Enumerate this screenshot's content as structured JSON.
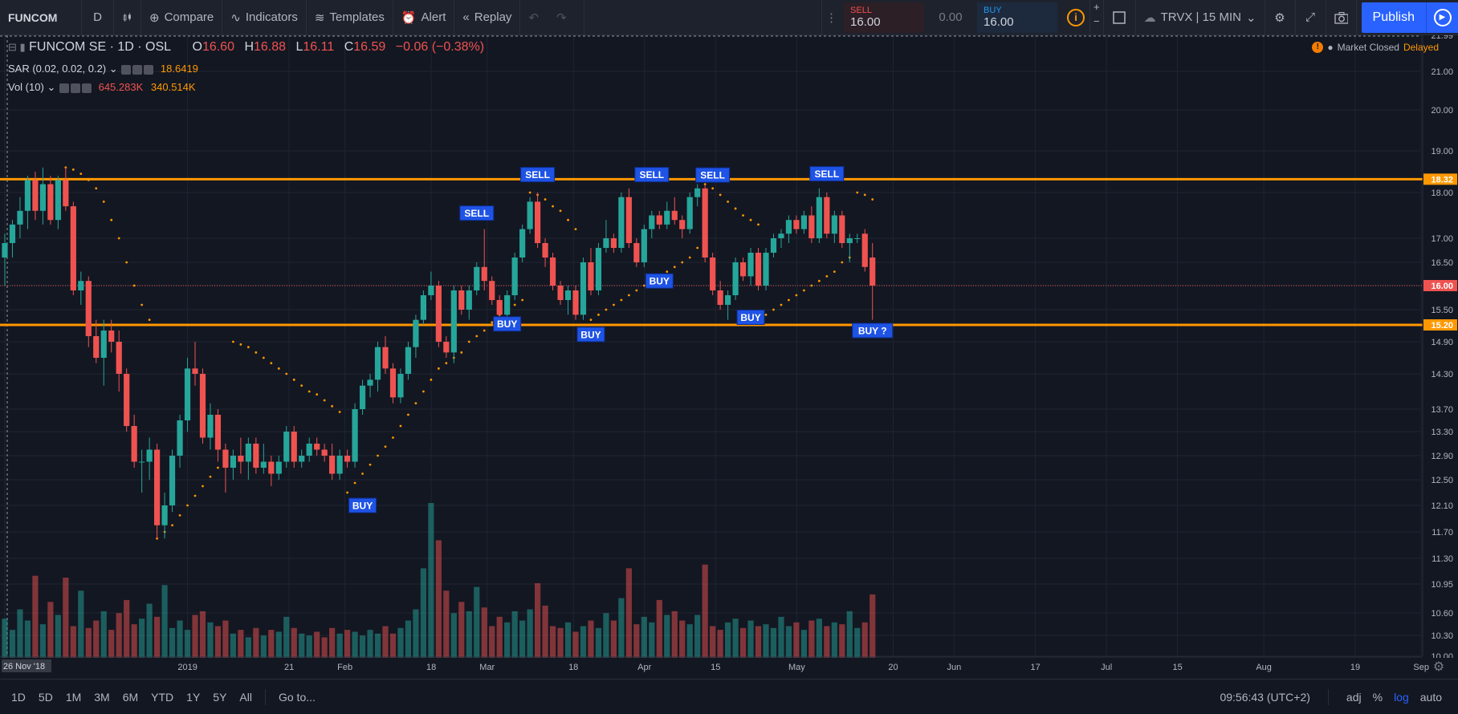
{
  "toolbar": {
    "symbol": "FUNCOM",
    "interval": "D",
    "compare": "Compare",
    "indicators": "Indicators",
    "templates": "Templates",
    "alert": "Alert",
    "replay": "Replay",
    "sell_label": "SELL",
    "sell_price": "16.00",
    "spread": "0.00",
    "buy_label": "BUY",
    "buy_price": "16.00",
    "layout_name": "TRVX | 15 MIN",
    "publish": "Publish"
  },
  "legend": {
    "name": "FUNCOM SE · 1D · OSL",
    "o_label": "O",
    "o": "16.60",
    "h_label": "H",
    "h": "16.88",
    "l_label": "L",
    "l": "16.11",
    "c_label": "C",
    "c": "16.59",
    "change": "−0.06 (−0.38%)",
    "sar_label": "SAR (0.02, 0.02, 0.2)",
    "sar_value": "18.6419",
    "vol_label": "Vol (10)",
    "vol_value": "645.283K",
    "vol_ma": "340.514K"
  },
  "status": {
    "market": "Market Closed",
    "delayed": "Delayed"
  },
  "bottom": {
    "ranges": [
      "1D",
      "5D",
      "1M",
      "3M",
      "6M",
      "YTD",
      "1Y",
      "5Y",
      "All"
    ],
    "goto": "Go to...",
    "time": "09:56:43 (UTC+2)",
    "adj": "adj",
    "percent": "%",
    "log": "log",
    "auto": "auto"
  },
  "chart_data": {
    "type": "candlestick",
    "y_ticks": [
      21.99,
      21.0,
      20.0,
      19.0,
      18.0,
      17.0,
      16.5,
      16.0,
      15.5,
      15.2,
      14.9,
      14.3,
      13.7,
      13.3,
      12.9,
      12.5,
      12.1,
      11.7,
      11.3,
      10.95,
      10.6,
      10.3,
      10.0
    ],
    "y_labels": [
      "21.99",
      "21.00",
      "20.00",
      "19.00",
      "18.00",
      "17.00",
      "16.50",
      "16.00",
      "15.50",
      "15.20",
      "14.90",
      "14.30",
      "13.70",
      "13.30",
      "12.90",
      "12.50",
      "12.10",
      "11.70",
      "11.30",
      "10.95",
      "10.60",
      "10.30",
      "10.00"
    ],
    "x_ticks": [
      {
        "label": "26 Nov '18",
        "day": 0
      },
      {
        "label": "2019",
        "day": 36
      },
      {
        "label": "21",
        "day": 56
      },
      {
        "label": "Feb",
        "day": 67
      },
      {
        "label": "18",
        "day": 84
      },
      {
        "label": "Mar",
        "day": 95
      },
      {
        "label": "18",
        "day": 112
      },
      {
        "label": "Apr",
        "day": 126
      },
      {
        "label": "15",
        "day": 140
      },
      {
        "label": "May",
        "day": 156
      },
      {
        "label": "20",
        "day": 175
      },
      {
        "label": "Jun",
        "day": 187
      },
      {
        "label": "17",
        "day": 203
      },
      {
        "label": "Jul",
        "day": 217
      },
      {
        "label": "15",
        "day": 231
      },
      {
        "label": "Aug",
        "day": 248
      },
      {
        "label": "19",
        "day": 266
      },
      {
        "label": "Sep",
        "day": 279
      }
    ],
    "horizontal_lines": [
      {
        "value": 18.32,
        "label": "18.32",
        "color": "#ff9800"
      },
      {
        "value": 15.2,
        "label": "15.20",
        "color": "#ff9800"
      }
    ],
    "last_price": {
      "value": 16.0,
      "label": "16.00",
      "color": "#ef5350"
    },
    "candles": [
      [
        16.6,
        17.1,
        16.0,
        16.9
      ],
      [
        16.9,
        17.4,
        16.6,
        17.3
      ],
      [
        17.3,
        17.9,
        17.0,
        17.6
      ],
      [
        17.6,
        18.4,
        17.2,
        18.3
      ],
      [
        18.3,
        18.5,
        17.4,
        17.6
      ],
      [
        17.6,
        18.6,
        17.3,
        18.2
      ],
      [
        18.2,
        18.4,
        17.3,
        17.4
      ],
      [
        17.4,
        18.4,
        17.2,
        18.3
      ],
      [
        18.3,
        18.6,
        17.6,
        17.7
      ],
      [
        17.7,
        17.8,
        15.8,
        15.9
      ],
      [
        15.9,
        16.3,
        15.6,
        16.1
      ],
      [
        16.1,
        16.2,
        14.8,
        15.0
      ],
      [
        15.0,
        15.3,
        14.5,
        14.6
      ],
      [
        14.6,
        15.3,
        14.1,
        15.1
      ],
      [
        15.1,
        15.3,
        14.7,
        14.9
      ],
      [
        14.9,
        15.1,
        14.0,
        14.3
      ],
      [
        14.3,
        14.4,
        13.3,
        13.4
      ],
      [
        13.4,
        13.6,
        12.7,
        12.8
      ],
      [
        12.8,
        13.0,
        12.3,
        12.8
      ],
      [
        12.8,
        13.2,
        12.5,
        13.0
      ],
      [
        13.0,
        13.1,
        11.6,
        11.8
      ],
      [
        11.8,
        12.3,
        11.6,
        12.1
      ],
      [
        12.1,
        13.0,
        12.0,
        12.9
      ],
      [
        12.9,
        13.6,
        12.7,
        13.5
      ],
      [
        13.5,
        14.6,
        13.3,
        14.4
      ],
      [
        14.4,
        14.9,
        14.1,
        14.3
      ],
      [
        14.3,
        14.4,
        13.1,
        13.2
      ],
      [
        13.2,
        13.8,
        13.0,
        13.6
      ],
      [
        13.6,
        13.7,
        12.8,
        13.0
      ],
      [
        13.0,
        13.1,
        12.3,
        12.7
      ],
      [
        12.7,
        13.0,
        12.5,
        12.9
      ],
      [
        12.9,
        13.2,
        12.6,
        12.8
      ],
      [
        12.8,
        13.2,
        12.5,
        13.1
      ],
      [
        13.1,
        13.2,
        12.6,
        12.7
      ],
      [
        12.7,
        13.1,
        12.6,
        12.8
      ],
      [
        12.8,
        12.9,
        12.4,
        12.6
      ],
      [
        12.6,
        12.9,
        12.5,
        12.8
      ],
      [
        12.8,
        13.4,
        12.7,
        13.3
      ],
      [
        13.3,
        13.4,
        12.7,
        12.8
      ],
      [
        12.8,
        13.0,
        12.7,
        12.9
      ],
      [
        12.9,
        13.2,
        12.8,
        13.1
      ],
      [
        13.1,
        13.2,
        12.9,
        13.0
      ],
      [
        13.0,
        13.1,
        12.8,
        12.9
      ],
      [
        12.9,
        13.1,
        12.5,
        12.6
      ],
      [
        12.6,
        13.0,
        12.5,
        12.9
      ],
      [
        12.9,
        13.0,
        12.7,
        12.8
      ],
      [
        12.8,
        13.8,
        12.7,
        13.7
      ],
      [
        13.7,
        14.2,
        13.6,
        14.1
      ],
      [
        14.1,
        14.3,
        13.9,
        14.2
      ],
      [
        14.2,
        14.9,
        14.0,
        14.8
      ],
      [
        14.8,
        15.0,
        14.3,
        14.4
      ],
      [
        14.4,
        14.5,
        13.8,
        13.9
      ],
      [
        13.9,
        14.4,
        13.8,
        14.3
      ],
      [
        14.3,
        14.9,
        14.2,
        14.8
      ],
      [
        14.8,
        15.4,
        14.6,
        15.3
      ],
      [
        15.3,
        15.9,
        15.2,
        15.8
      ],
      [
        15.8,
        16.3,
        15.7,
        16.0
      ],
      [
        16.0,
        16.1,
        14.8,
        14.9
      ],
      [
        14.9,
        15.0,
        14.6,
        14.7
      ],
      [
        14.7,
        16.0,
        14.5,
        15.9
      ],
      [
        15.9,
        16.0,
        15.4,
        15.5
      ],
      [
        15.5,
        16.0,
        15.3,
        15.9
      ],
      [
        15.9,
        16.5,
        15.8,
        16.4
      ],
      [
        16.4,
        17.2,
        15.9,
        16.1
      ],
      [
        16.1,
        16.2,
        15.6,
        15.7
      ],
      [
        15.7,
        15.8,
        15.2,
        15.4
      ],
      [
        15.4,
        15.9,
        15.3,
        15.8
      ],
      [
        15.8,
        16.7,
        15.7,
        16.6
      ],
      [
        16.6,
        17.3,
        16.5,
        17.2
      ],
      [
        17.2,
        17.9,
        17.1,
        17.8
      ],
      [
        17.8,
        18.0,
        16.8,
        16.9
      ],
      [
        16.9,
        17.0,
        16.4,
        16.6
      ],
      [
        16.6,
        16.7,
        15.9,
        16.0
      ],
      [
        16.0,
        16.1,
        15.6,
        15.7
      ],
      [
        15.7,
        16.0,
        15.4,
        15.9
      ],
      [
        15.9,
        16.0,
        15.3,
        15.4
      ],
      [
        15.4,
        16.6,
        15.3,
        16.5
      ],
      [
        16.5,
        16.8,
        15.8,
        15.9
      ],
      [
        15.9,
        16.9,
        15.8,
        16.8
      ],
      [
        16.8,
        17.4,
        16.7,
        17.0
      ],
      [
        17.0,
        17.1,
        16.7,
        16.8
      ],
      [
        16.8,
        18.0,
        16.7,
        17.9
      ],
      [
        17.9,
        18.1,
        16.8,
        16.9
      ],
      [
        16.9,
        17.0,
        16.4,
        16.5
      ],
      [
        16.5,
        17.3,
        16.4,
        17.2
      ],
      [
        17.2,
        17.6,
        17.0,
        17.5
      ],
      [
        17.5,
        17.6,
        17.2,
        17.3
      ],
      [
        17.3,
        17.8,
        17.2,
        17.6
      ],
      [
        17.6,
        17.9,
        17.3,
        17.4
      ],
      [
        17.4,
        17.5,
        17.0,
        17.2
      ],
      [
        17.2,
        18.0,
        17.1,
        17.9
      ],
      [
        17.9,
        18.2,
        17.7,
        18.1
      ],
      [
        18.1,
        18.2,
        16.5,
        16.6
      ],
      [
        16.6,
        16.7,
        15.8,
        15.9
      ],
      [
        15.9,
        16.1,
        15.5,
        15.6
      ],
      [
        15.6,
        15.9,
        15.3,
        15.8
      ],
      [
        15.8,
        16.6,
        15.7,
        16.5
      ],
      [
        16.5,
        16.6,
        16.1,
        16.2
      ],
      [
        16.2,
        16.8,
        16.0,
        16.7
      ],
      [
        16.7,
        16.8,
        15.9,
        16.0
      ],
      [
        16.0,
        16.8,
        15.9,
        16.7
      ],
      [
        16.7,
        17.1,
        16.6,
        17.0
      ],
      [
        17.0,
        17.2,
        16.8,
        17.1
      ],
      [
        17.1,
        17.5,
        16.9,
        17.4
      ],
      [
        17.4,
        17.5,
        17.1,
        17.2
      ],
      [
        17.2,
        17.6,
        17.1,
        17.5
      ],
      [
        17.5,
        17.7,
        16.9,
        17.0
      ],
      [
        17.0,
        18.1,
        16.9,
        17.9
      ],
      [
        17.9,
        18.0,
        17.0,
        17.1
      ],
      [
        17.1,
        17.6,
        16.9,
        17.5
      ],
      [
        17.5,
        17.6,
        16.8,
        16.9
      ],
      [
        16.9,
        17.1,
        16.5,
        17.0
      ],
      [
        17.0,
        17.1,
        16.9,
        17.0
      ],
      [
        17.1,
        17.2,
        16.3,
        16.4
      ],
      [
        16.6,
        16.9,
        15.3,
        16.0
      ]
    ],
    "sar": [
      null,
      null,
      null,
      null,
      null,
      null,
      null,
      null,
      18.6,
      18.55,
      18.45,
      18.3,
      18.1,
      17.8,
      17.4,
      17.0,
      16.5,
      16.0,
      15.6,
      15.3,
      11.6,
      11.7,
      11.8,
      11.95,
      12.1,
      12.25,
      12.4,
      12.55,
      12.7,
      12.85,
      14.9,
      14.85,
      14.8,
      14.7,
      14.6,
      14.5,
      14.4,
      14.3,
      14.2,
      14.1,
      14.0,
      13.95,
      13.85,
      13.75,
      13.65,
      12.3,
      12.45,
      12.6,
      12.75,
      12.9,
      13.05,
      13.2,
      13.4,
      13.6,
      13.8,
      14.0,
      14.2,
      14.4,
      14.5,
      14.6,
      14.7,
      14.9,
      15.0,
      15.1,
      15.25,
      15.4,
      15.5,
      15.6,
      15.7,
      18.0,
      17.95,
      17.85,
      17.7,
      17.6,
      17.4,
      17.2,
      15.2,
      15.3,
      15.4,
      15.5,
      15.6,
      15.7,
      15.8,
      15.9,
      16.0,
      16.1,
      16.2,
      16.3,
      16.4,
      16.5,
      16.6,
      16.8,
      18.2,
      18.1,
      17.95,
      17.8,
      17.65,
      17.5,
      17.4,
      17.3,
      15.4,
      15.5,
      15.6,
      15.7,
      15.8,
      15.9,
      16.0,
      16.1,
      16.2,
      16.3,
      16.5,
      16.6,
      18.0,
      17.95,
      17.85
    ],
    "volume": [
      210,
      150,
      260,
      200,
      440,
      180,
      300,
      230,
      430,
      170,
      360,
      160,
      200,
      250,
      150,
      240,
      310,
      180,
      210,
      290,
      220,
      390,
      160,
      200,
      150,
      230,
      250,
      190,
      170,
      200,
      130,
      150,
      110,
      160,
      120,
      150,
      140,
      220,
      160,
      130,
      120,
      140,
      110,
      160,
      130,
      150,
      140,
      120,
      150,
      130,
      170,
      130,
      160,
      200,
      260,
      480,
      830,
      630,
      360,
      240,
      300,
      250,
      380,
      270,
      170,
      220,
      190,
      250,
      200,
      260,
      400,
      280,
      170,
      160,
      190,
      140,
      170,
      200,
      160,
      240,
      200,
      320,
      480,
      180,
      220,
      190,
      310,
      230,
      250,
      200,
      180,
      230,
      500,
      170,
      150,
      190,
      210,
      160,
      200,
      170,
      180,
      160,
      220,
      170,
      190,
      150,
      200,
      210,
      170,
      190,
      180,
      250,
      160,
      190,
      340
    ],
    "volume_max": 830,
    "annotations": [
      {
        "text": "SELL",
        "index": 85,
        "price": 18.43,
        "dir": "up"
      },
      {
        "text": "SELL",
        "index": 70,
        "price": 18.43,
        "dir": "up"
      },
      {
        "text": "SELL",
        "index": 62,
        "price": 17.55,
        "dir": "up"
      },
      {
        "text": "SELL",
        "index": 93,
        "price": 18.42,
        "dir": "up"
      },
      {
        "text": "SELL",
        "index": 108,
        "price": 18.45,
        "dir": "up"
      },
      {
        "text": "BUY",
        "index": 47,
        "price": 12.1,
        "dir": "down"
      },
      {
        "text": "BUY",
        "index": 66,
        "price": 15.22,
        "dir": "down"
      },
      {
        "text": "BUY",
        "index": 77,
        "price": 15.03,
        "dir": "down"
      },
      {
        "text": "BUY",
        "index": 86,
        "price": 16.1,
        "dir": "down"
      },
      {
        "text": "BUY",
        "index": 98,
        "price": 15.35,
        "dir": "down"
      },
      {
        "text": "BUY ?",
        "index": 114,
        "price": 15.1,
        "dir": "down"
      }
    ]
  }
}
